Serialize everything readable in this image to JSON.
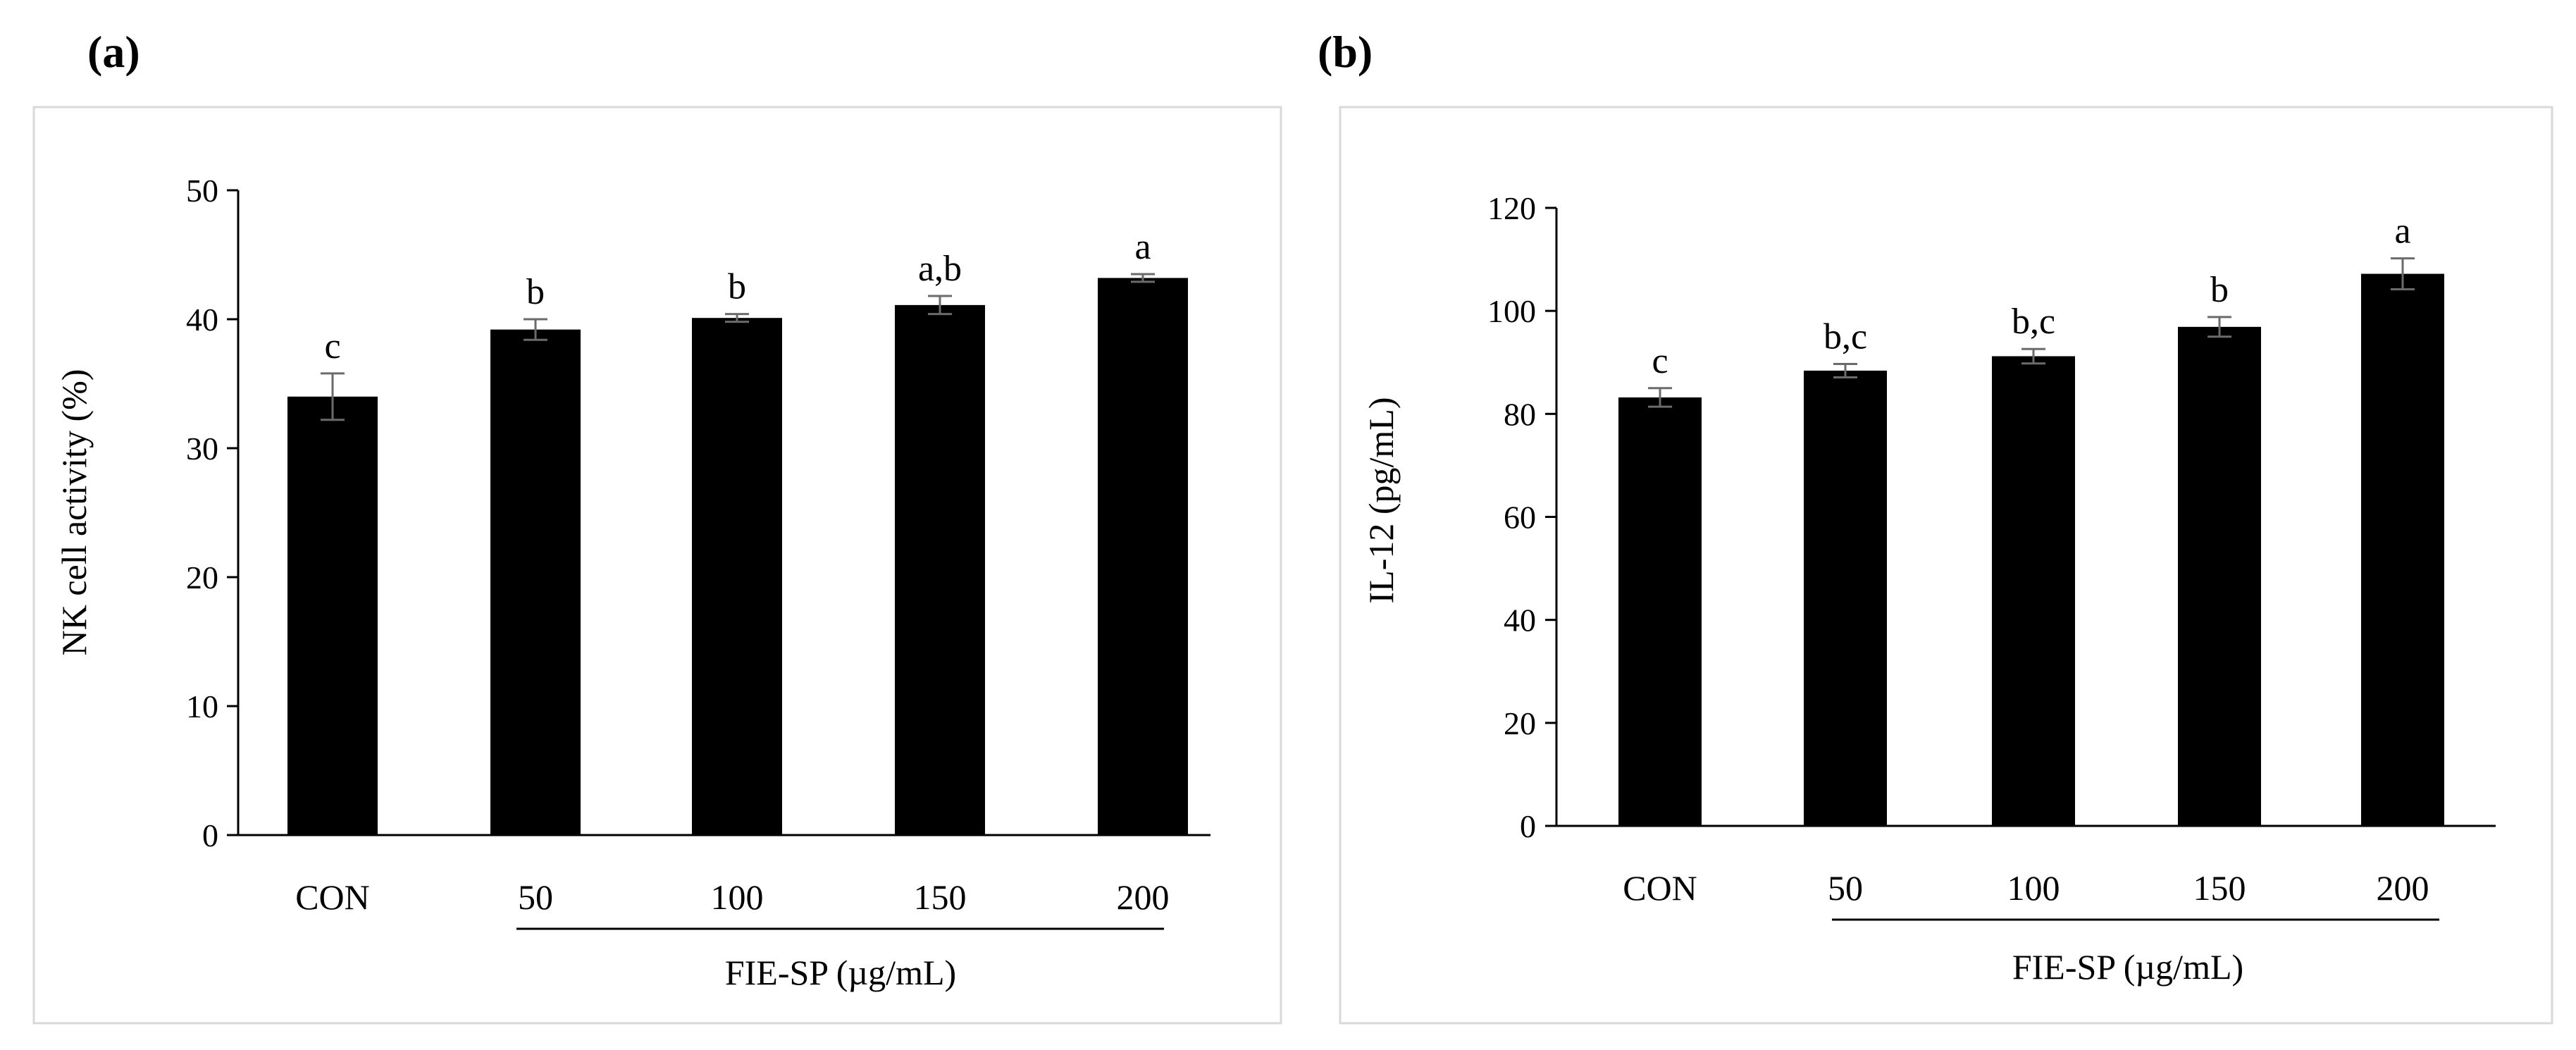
{
  "chart_data": [
    {
      "panel_label": "(a)",
      "type": "bar",
      "categories": [
        "CON",
        "50",
        "100",
        "150",
        "200"
      ],
      "values": [
        34.0,
        39.2,
        40.1,
        41.1,
        43.2
      ],
      "errors": [
        1.8,
        0.8,
        0.3,
        0.7,
        0.3
      ],
      "significance": [
        "c",
        "b",
        "b",
        "a,b",
        "a"
      ],
      "xlabel": "FIE-SP (µg/mL)",
      "ylabel": "NK cell activity (%)",
      "ylim": [
        0,
        50
      ],
      "yticks": [
        "0",
        "10",
        "20",
        "30",
        "40",
        "50"
      ],
      "grid": false
    },
    {
      "panel_label": "(b)",
      "type": "bar",
      "categories": [
        "CON",
        "50",
        "100",
        "150",
        "200"
      ],
      "values": [
        83.2,
        88.4,
        91.2,
        96.9,
        107.2
      ],
      "errors": [
        1.8,
        1.3,
        1.4,
        1.9,
        3.0
      ],
      "significance": [
        "c",
        "b,c",
        "b,c",
        "b",
        "a"
      ],
      "xlabel": "FIE-SP (µg/mL)",
      "ylabel": "IL-12 (pg/mL)",
      "ylim": [
        0,
        120
      ],
      "yticks": [
        "0",
        "20",
        "40",
        "60",
        "80",
        "100",
        "120"
      ],
      "grid": false
    }
  ]
}
